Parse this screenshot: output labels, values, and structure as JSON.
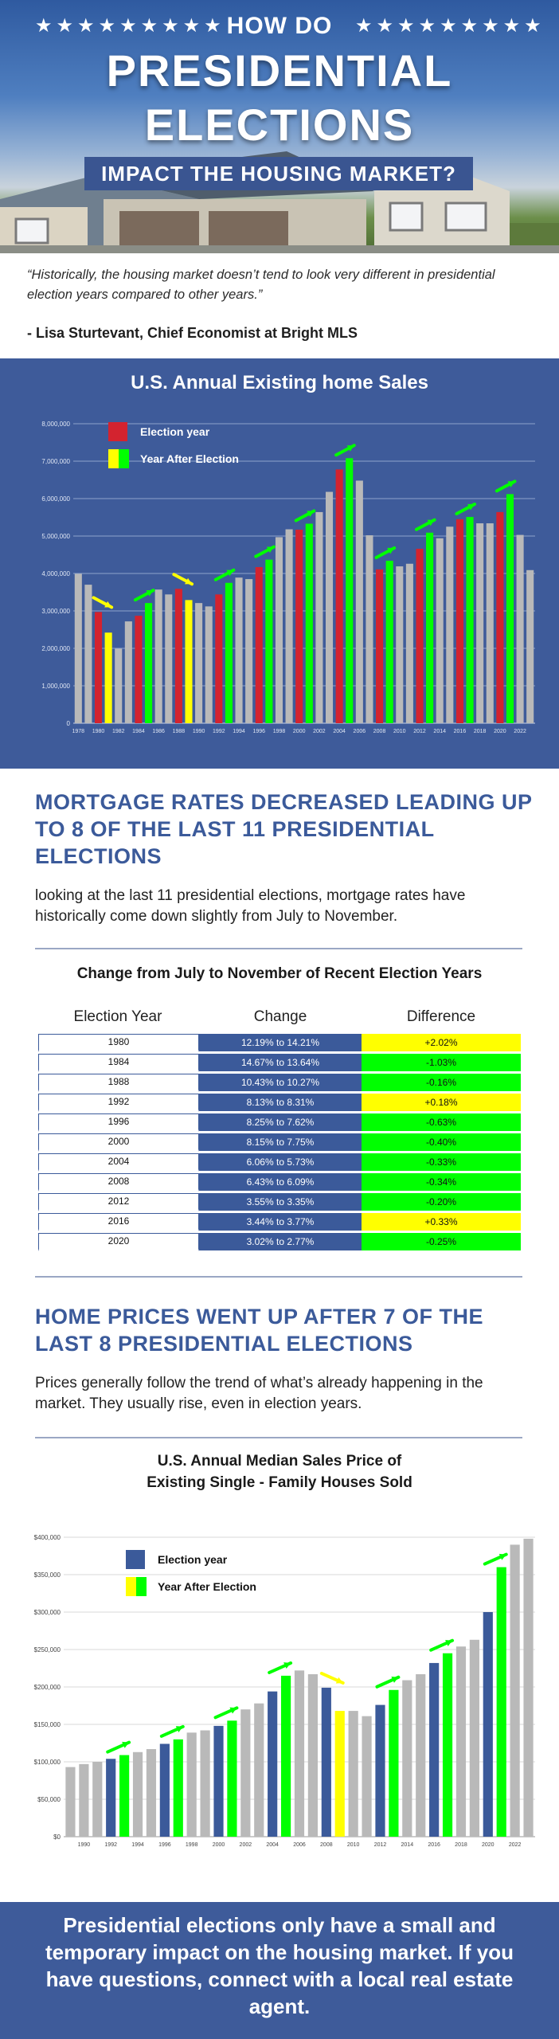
{
  "hero": {
    "stars_left": "★★★★★★★★★",
    "stars_right": "★★★★★★★★★",
    "kicker": "HOW DO",
    "title_line1": "PRESIDENTIAL",
    "title_line2": "ELECTIONS",
    "subtitle": "IMPACT THE HOUSING MARKET?"
  },
  "quote": {
    "text": "“Historically, the housing market doesn’t tend to look very different in presidential election years compared to other years.”",
    "author": "- Lisa Sturtevant, Chief Economist at Bright MLS"
  },
  "colors": {
    "panel_blue": "#3e5b9a",
    "navy": "#3b5a9a",
    "election_red": "#d3232f",
    "after_yellow": "#ffff00",
    "after_green": "#00ff00",
    "bar_grey": "#b9b9b9"
  },
  "chart_data": [
    {
      "type": "bar",
      "title": "U.S. Annual Existing home Sales",
      "xlabel": "",
      "ylabel": "",
      "ylim": [
        0,
        8000000
      ],
      "grid": true,
      "legend_position": "top-left",
      "legend": [
        {
          "label": "Election year",
          "colors": [
            "#d3232f"
          ]
        },
        {
          "label": "Year After Election",
          "colors": [
            "#ffff00",
            "#00ff00"
          ]
        }
      ],
      "y_tick_labels": [
        "0",
        "1,000,000",
        "2,000,000",
        "3,000,000",
        "4,000,000",
        "5,000,000",
        "6,000,000",
        "7,000,000",
        "8,000,000"
      ],
      "x_tick_labels": [
        "1978",
        "1980",
        "1982",
        "1984",
        "1986",
        "1988",
        "1990",
        "1992",
        "1994",
        "1996",
        "1998",
        "2000",
        "2002",
        "2004",
        "2006",
        "2008",
        "2010",
        "2012",
        "2014",
        "2016",
        "2018",
        "2020",
        "2022"
      ],
      "categories": [
        1978,
        1979,
        1980,
        1981,
        1982,
        1983,
        1984,
        1985,
        1986,
        1987,
        1988,
        1989,
        1990,
        1991,
        1992,
        1993,
        1994,
        1995,
        1996,
        1997,
        1998,
        1999,
        2000,
        2001,
        2002,
        2003,
        2004,
        2005,
        2006,
        2007,
        2008,
        2009,
        2010,
        2011,
        2012,
        2013,
        2014,
        2015,
        2016,
        2017,
        2018,
        2019,
        2020,
        2021,
        2022,
        2023
      ],
      "values": [
        3990000,
        3700000,
        2970000,
        2420000,
        1990000,
        2720000,
        2870000,
        3210000,
        3570000,
        3440000,
        3590000,
        3290000,
        3210000,
        3120000,
        3440000,
        3750000,
        3890000,
        3850000,
        4170000,
        4370000,
        4970000,
        5180000,
        5170000,
        5330000,
        5640000,
        6180000,
        6780000,
        7080000,
        6480000,
        5020000,
        4110000,
        4340000,
        4190000,
        4260000,
        4660000,
        5090000,
        4940000,
        5250000,
        5450000,
        5510000,
        5340000,
        5340000,
        5640000,
        6120000,
        5030000,
        4090000
      ],
      "roles": [
        "n",
        "n",
        "e",
        "a",
        "n",
        "n",
        "e",
        "a",
        "n",
        "n",
        "e",
        "a",
        "n",
        "n",
        "e",
        "a",
        "n",
        "n",
        "e",
        "a",
        "n",
        "n",
        "e",
        "a",
        "n",
        "n",
        "e",
        "a",
        "n",
        "n",
        "e",
        "a",
        "n",
        "n",
        "e",
        "a",
        "n",
        "n",
        "e",
        "a",
        "n",
        "n",
        "e",
        "a",
        "n",
        "n"
      ],
      "trend_arrows": [
        {
          "from": 1980,
          "to": 1981,
          "direction": "down",
          "color": "#ffff00"
        },
        {
          "from": 1984,
          "to": 1985,
          "direction": "up",
          "color": "#00ff00"
        },
        {
          "from": 1988,
          "to": 1989,
          "direction": "down",
          "color": "#ffff00"
        },
        {
          "from": 1992,
          "to": 1993,
          "direction": "up",
          "color": "#00ff00"
        },
        {
          "from": 1996,
          "to": 1997,
          "direction": "up",
          "color": "#00ff00"
        },
        {
          "from": 2000,
          "to": 2001,
          "direction": "up",
          "color": "#00ff00"
        },
        {
          "from": 2004,
          "to": 2005,
          "direction": "up",
          "color": "#00ff00"
        },
        {
          "from": 2008,
          "to": 2009,
          "direction": "up",
          "color": "#00ff00"
        },
        {
          "from": 2012,
          "to": 2013,
          "direction": "up",
          "color": "#00ff00"
        },
        {
          "from": 2016,
          "to": 2017,
          "direction": "up",
          "color": "#00ff00"
        },
        {
          "from": 2020,
          "to": 2021,
          "direction": "up",
          "color": "#00ff00"
        }
      ]
    },
    {
      "type": "table",
      "title": "Change from July to November of Recent Election Years",
      "columns": [
        "Election Year",
        "Change",
        "Difference"
      ],
      "rows": [
        {
          "year": "1980",
          "change": "12.19% to 14.21%",
          "difference": "+2.02%",
          "color": "#ffff00"
        },
        {
          "year": "1984",
          "change": "14.67% to 13.64%",
          "difference": "-1.03%",
          "color": "#00ff00"
        },
        {
          "year": "1988",
          "change": "10.43% to 10.27%",
          "difference": "-0.16%",
          "color": "#00ff00"
        },
        {
          "year": "1992",
          "change": "8.13% to 8.31%",
          "difference": "+0.18%",
          "color": "#ffff00"
        },
        {
          "year": "1996",
          "change": "8.25% to 7.62%",
          "difference": "-0.63%",
          "color": "#00ff00"
        },
        {
          "year": "2000",
          "change": "8.15% to 7.75%",
          "difference": "-0.40%",
          "color": "#00ff00"
        },
        {
          "year": "2004",
          "change": "6.06% to 5.73%",
          "difference": "-0.33%",
          "color": "#00ff00"
        },
        {
          "year": "2008",
          "change": "6.43% to 6.09%",
          "difference": "-0.34%",
          "color": "#00ff00"
        },
        {
          "year": "2012",
          "change": "3.55% to 3.35%",
          "difference": "-0.20%",
          "color": "#00ff00"
        },
        {
          "year": "2016",
          "change": "3.44% to 3.77%",
          "difference": "+0.33%",
          "color": "#ffff00"
        },
        {
          "year": "2020",
          "change": "3.02% to 2.77%",
          "difference": "-0.25%",
          "color": "#00ff00"
        }
      ]
    },
    {
      "type": "bar",
      "title": "U.S. Annual Median Sales Price of Existing Single - Family Houses Sold",
      "title_lines": [
        "U.S. Annual Median Sales Price of",
        "Existing Single - Family Houses Sold"
      ],
      "xlabel": "",
      "ylabel": "",
      "ylim": [
        0,
        400000
      ],
      "grid": true,
      "legend_position": "top-left",
      "legend": [
        {
          "label": "Election year",
          "colors": [
            "#3b5a9a"
          ]
        },
        {
          "label": "Year After Election",
          "colors": [
            "#ffff00",
            "#00ff00"
          ]
        }
      ],
      "y_tick_labels": [
        "$0",
        "$50,000",
        "$100,000",
        "$150,000",
        "$200,000",
        "$250,000",
        "$300,000",
        "$350,000",
        "$400,000"
      ],
      "x_tick_labels": [
        "1990",
        "1992",
        "1994",
        "1996",
        "1998",
        "2000",
        "2002",
        "2004",
        "2006",
        "2008",
        "2010",
        "2012",
        "2014",
        "2016",
        "2018",
        "2020",
        "2022"
      ],
      "categories": [
        1989,
        1990,
        1991,
        1992,
        1993,
        1994,
        1995,
        1996,
        1997,
        1998,
        1999,
        2000,
        2001,
        2002,
        2003,
        2004,
        2005,
        2006,
        2007,
        2008,
        2009,
        2010,
        2011,
        2012,
        2013,
        2014,
        2015,
        2016,
        2017,
        2018,
        2019,
        2020,
        2021,
        2022,
        2023
      ],
      "values": [
        93000,
        97000,
        100000,
        104000,
        109000,
        113000,
        117000,
        124000,
        130000,
        139000,
        142000,
        148000,
        155000,
        170000,
        178000,
        194000,
        215000,
        222000,
        217000,
        199000,
        168000,
        168000,
        161000,
        176000,
        196000,
        209000,
        217000,
        232000,
        245000,
        254000,
        263000,
        300000,
        360000,
        390000,
        398000
      ],
      "roles": [
        "n",
        "n",
        "n",
        "e",
        "a",
        "n",
        "n",
        "e",
        "a",
        "n",
        "n",
        "e",
        "a",
        "n",
        "n",
        "e",
        "a",
        "n",
        "n",
        "e",
        "a",
        "n",
        "n",
        "e",
        "a",
        "n",
        "n",
        "e",
        "a",
        "n",
        "n",
        "e",
        "a",
        "n",
        "n"
      ],
      "trend_arrows": [
        {
          "from": 1992,
          "to": 1993,
          "direction": "up",
          "color": "#00ff00"
        },
        {
          "from": 1996,
          "to": 1997,
          "direction": "up",
          "color": "#00ff00"
        },
        {
          "from": 2000,
          "to": 2001,
          "direction": "up",
          "color": "#00ff00"
        },
        {
          "from": 2004,
          "to": 2005,
          "direction": "up",
          "color": "#00ff00"
        },
        {
          "from": 2008,
          "to": 2009,
          "direction": "down",
          "color": "#ffff00"
        },
        {
          "from": 2012,
          "to": 2013,
          "direction": "up",
          "color": "#00ff00"
        },
        {
          "from": 2016,
          "to": 2017,
          "direction": "up",
          "color": "#00ff00"
        },
        {
          "from": 2020,
          "to": 2021,
          "direction": "up",
          "color": "#00ff00"
        }
      ]
    }
  ],
  "mortgage": {
    "heading": "MORTGAGE RATES DECREASED LEADING UP TO 8 OF THE LAST 11 PRESIDENTIAL ELECTIONS",
    "paragraph": "looking at the last 11 presidential elections, mortgage rates have historically come down slightly from July to November."
  },
  "prices": {
    "heading": "HOME PRICES WENT UP AFTER 7 OF THE LAST 8 PRESIDENTIAL ELECTIONS",
    "paragraph": "Prices generally follow the trend of what’s already happening in the market. They usually rise, even in election years."
  },
  "footer": {
    "text": "Presidential elections only have a small and temporary impact on the housing market. If you have questions, connect with a local real estate agent."
  }
}
